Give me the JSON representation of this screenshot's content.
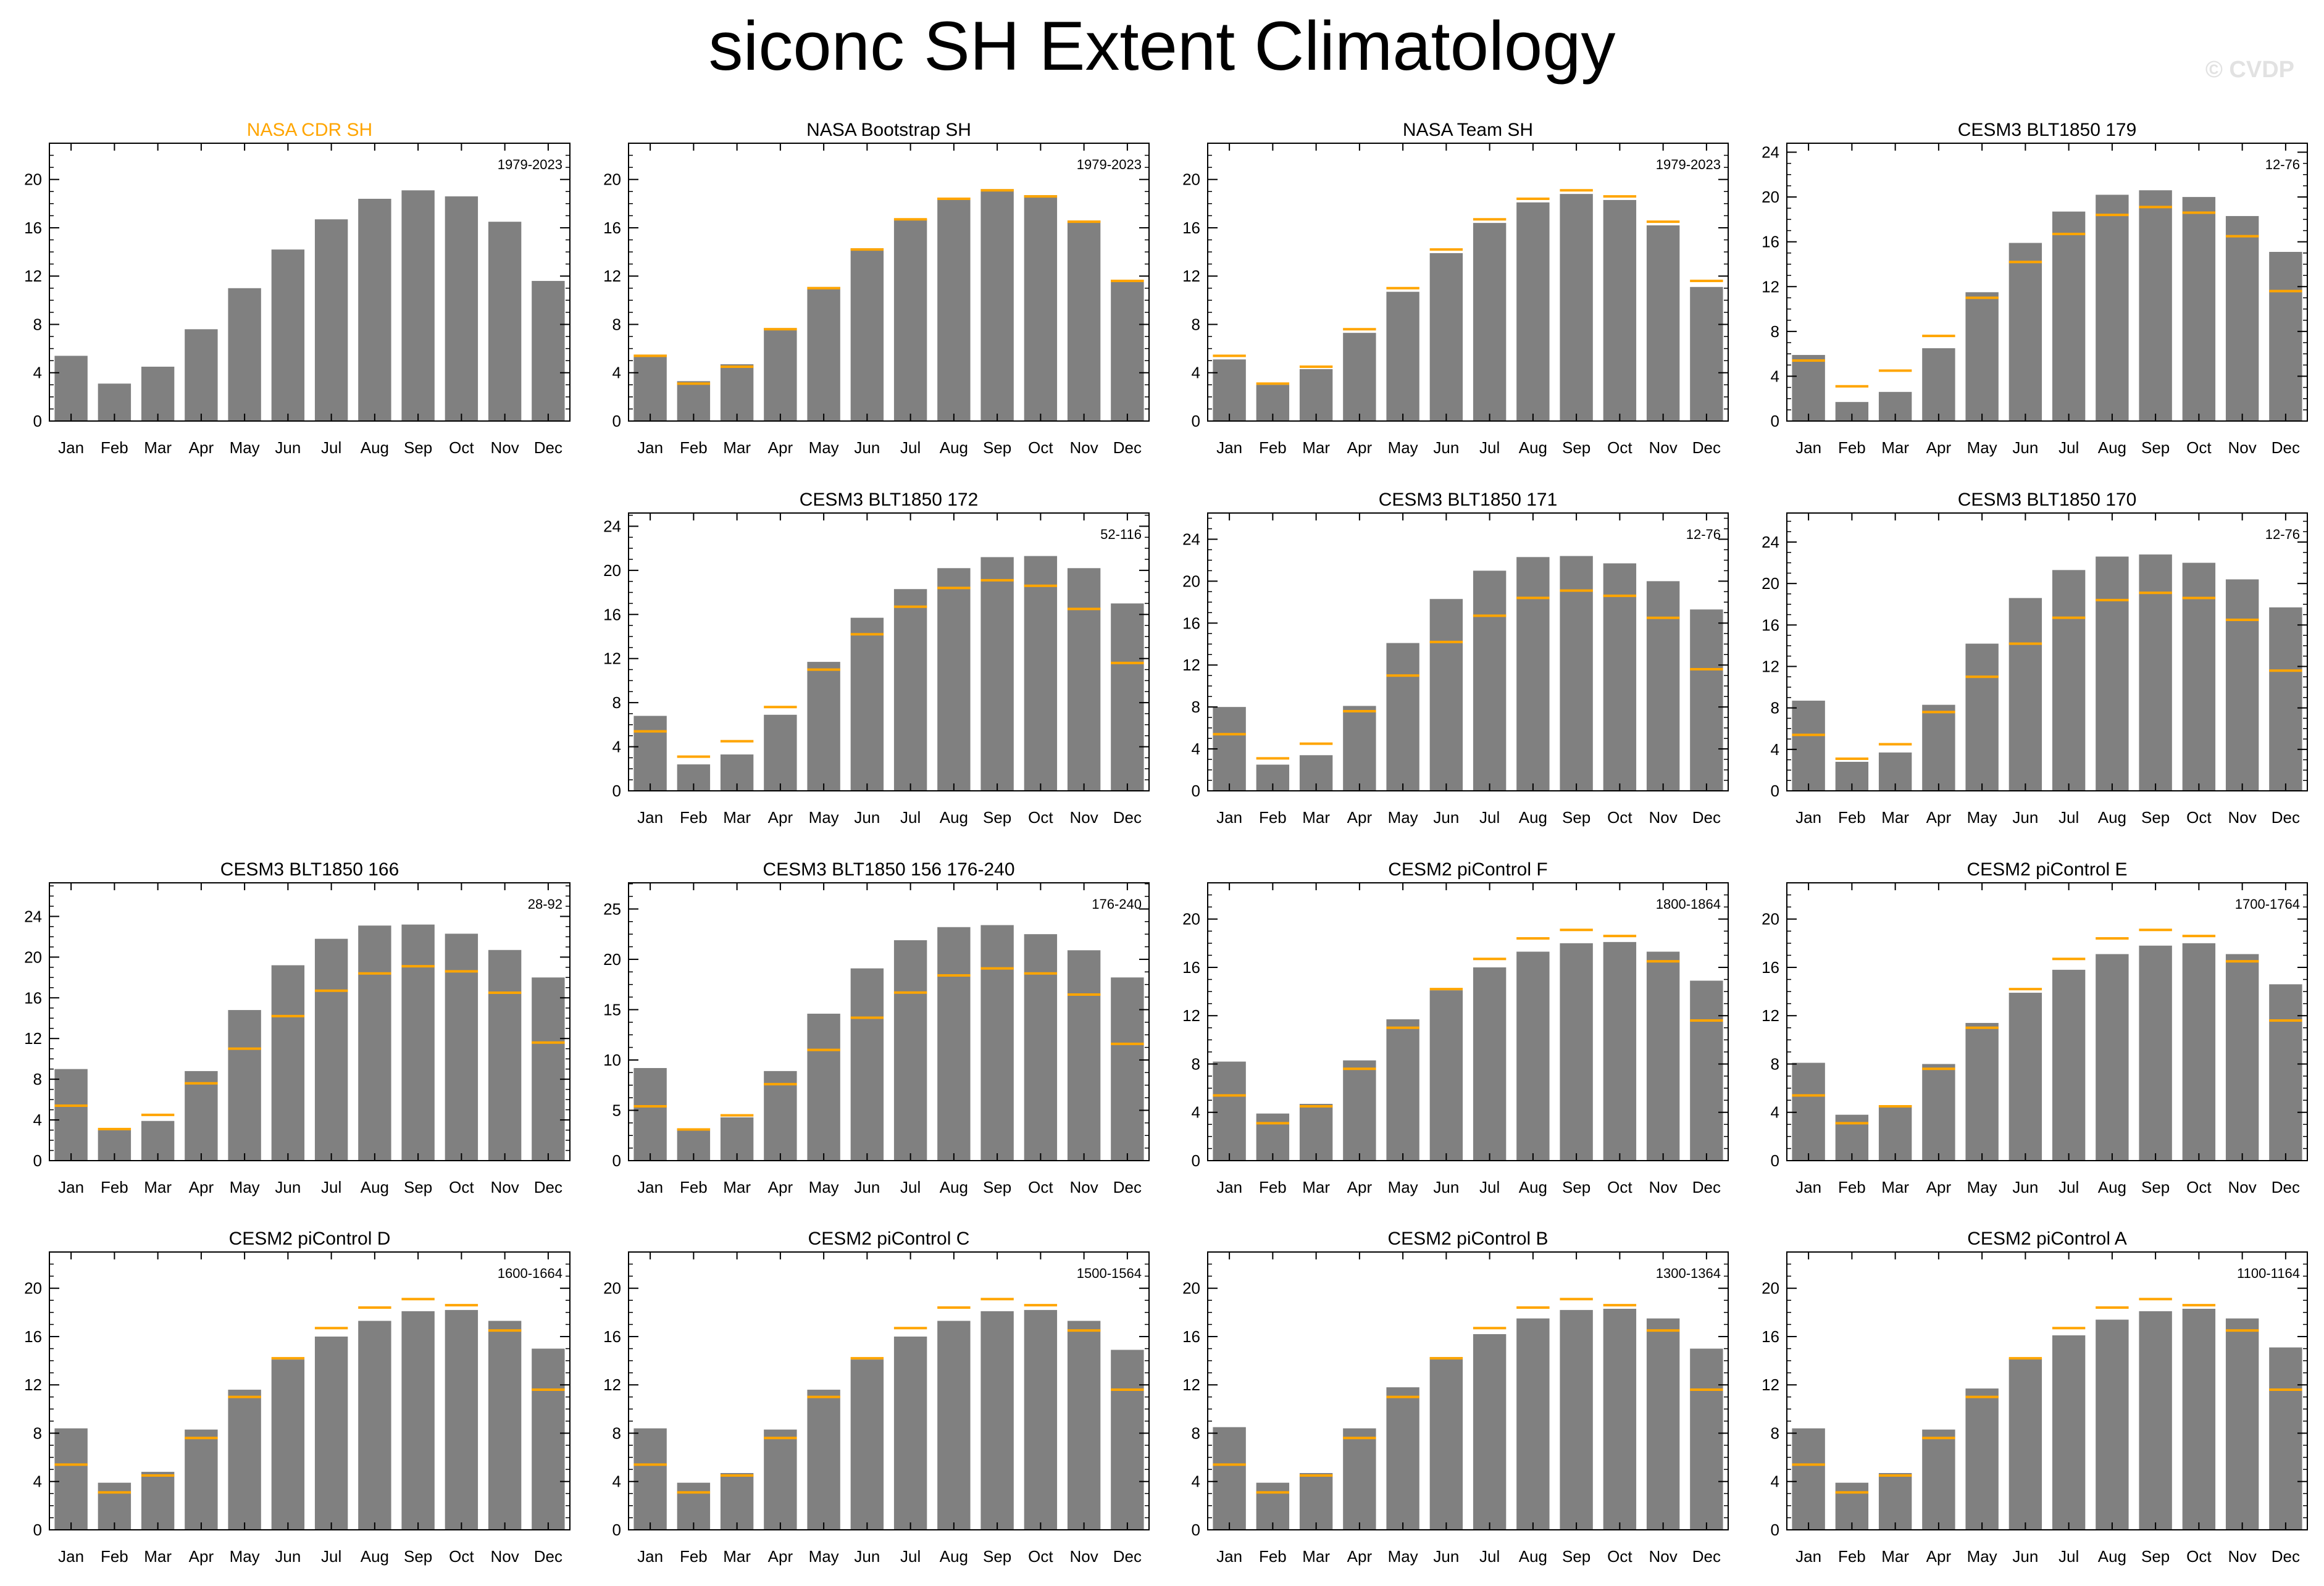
{
  "title": "siconc SH Extent Climatology",
  "watermark": "© CVDP",
  "colors": {
    "bar": "#808080",
    "ref_line": "#ffa500",
    "highlight_title": "#ffa500"
  },
  "chart_data": [
    {
      "type": "bar",
      "title": "NASA CDR SH",
      "title_color": "#ffa500",
      "period": "1979-2023",
      "categories": [
        "Jan",
        "Feb",
        "Mar",
        "Apr",
        "May",
        "Jun",
        "Jul",
        "Aug",
        "Sep",
        "Oct",
        "Nov",
        "Dec"
      ],
      "values": [
        5.4,
        3.1,
        4.5,
        7.6,
        11.0,
        14.2,
        16.7,
        18.4,
        19.1,
        18.6,
        16.5,
        11.6
      ],
      "ylim": [
        0,
        23
      ],
      "yticks": [
        0,
        4,
        8,
        12,
        16,
        20
      ],
      "reference": null
    },
    {
      "type": "bar",
      "title": "NASA Bootstrap SH",
      "period": "1979-2023",
      "categories": [
        "Jan",
        "Feb",
        "Mar",
        "Apr",
        "May",
        "Jun",
        "Jul",
        "Aug",
        "Sep",
        "Oct",
        "Nov",
        "Dec"
      ],
      "values": [
        5.5,
        3.3,
        4.7,
        7.7,
        11.1,
        14.3,
        16.7,
        18.5,
        19.2,
        18.7,
        16.6,
        11.7
      ],
      "ylim": [
        0,
        23
      ],
      "yticks": [
        0,
        4,
        8,
        12,
        16,
        20
      ],
      "reference": [
        5.4,
        3.1,
        4.5,
        7.6,
        11.0,
        14.2,
        16.7,
        18.4,
        19.1,
        18.6,
        16.5,
        11.6
      ]
    },
    {
      "type": "bar",
      "title": "NASA Team SH",
      "period": "1979-2023",
      "categories": [
        "Jan",
        "Feb",
        "Mar",
        "Apr",
        "May",
        "Jun",
        "Jul",
        "Aug",
        "Sep",
        "Oct",
        "Nov",
        "Dec"
      ],
      "values": [
        5.1,
        3.0,
        4.3,
        7.3,
        10.7,
        13.9,
        16.4,
        18.1,
        18.8,
        18.3,
        16.2,
        11.1
      ],
      "ylim": [
        0,
        23
      ],
      "yticks": [
        0,
        4,
        8,
        12,
        16,
        20
      ],
      "reference": [
        5.4,
        3.1,
        4.5,
        7.6,
        11.0,
        14.2,
        16.7,
        18.4,
        19.1,
        18.6,
        16.5,
        11.6
      ]
    },
    {
      "type": "bar",
      "title": "CESM3 BLT1850 179",
      "period": "12-76",
      "categories": [
        "Jan",
        "Feb",
        "Mar",
        "Apr",
        "May",
        "Jun",
        "Jul",
        "Aug",
        "Sep",
        "Oct",
        "Nov",
        "Dec"
      ],
      "values": [
        5.9,
        1.7,
        2.6,
        6.5,
        11.5,
        15.9,
        18.7,
        20.2,
        20.6,
        20.0,
        18.3,
        15.1
      ],
      "ylim": [
        0,
        24.8
      ],
      "yticks": [
        0,
        4,
        8,
        12,
        16,
        20,
        24
      ],
      "reference": [
        5.4,
        3.1,
        4.5,
        7.6,
        11.0,
        14.2,
        16.7,
        18.4,
        19.1,
        18.6,
        16.5,
        11.6
      ]
    },
    null,
    {
      "type": "bar",
      "title": "CESM3 BLT1850 172",
      "period": "52-116",
      "categories": [
        "Jan",
        "Feb",
        "Mar",
        "Apr",
        "May",
        "Jun",
        "Jul",
        "Aug",
        "Sep",
        "Oct",
        "Nov",
        "Dec"
      ],
      "values": [
        6.8,
        2.4,
        3.3,
        6.9,
        11.7,
        15.7,
        18.3,
        20.2,
        21.2,
        21.3,
        20.2,
        17.0
      ],
      "ylim": [
        0,
        25.2
      ],
      "yticks": [
        0,
        4,
        8,
        12,
        16,
        20,
        24
      ],
      "reference": [
        5.4,
        3.1,
        4.5,
        7.6,
        11.0,
        14.2,
        16.7,
        18.4,
        19.1,
        18.6,
        16.5,
        11.6
      ]
    },
    {
      "type": "bar",
      "title": "CESM3 BLT1850 171",
      "period": "12-76",
      "categories": [
        "Jan",
        "Feb",
        "Mar",
        "Apr",
        "May",
        "Jun",
        "Jul",
        "Aug",
        "Sep",
        "Oct",
        "Nov",
        "Dec"
      ],
      "values": [
        8.0,
        2.5,
        3.4,
        8.1,
        14.1,
        18.3,
        21.0,
        22.3,
        22.4,
        21.7,
        20.0,
        17.3
      ],
      "ylim": [
        0,
        26.5
      ],
      "yticks": [
        0,
        4,
        8,
        12,
        16,
        20,
        24
      ],
      "reference": [
        5.4,
        3.1,
        4.5,
        7.6,
        11.0,
        14.2,
        16.7,
        18.4,
        19.1,
        18.6,
        16.5,
        11.6
      ]
    },
    {
      "type": "bar",
      "title": "CESM3 BLT1850 170",
      "period": "12-76",
      "categories": [
        "Jan",
        "Feb",
        "Mar",
        "Apr",
        "May",
        "Jun",
        "Jul",
        "Aug",
        "Sep",
        "Oct",
        "Nov",
        "Dec"
      ],
      "values": [
        8.7,
        2.8,
        3.7,
        8.3,
        14.2,
        18.6,
        21.3,
        22.6,
        22.8,
        22.0,
        20.4,
        17.7
      ],
      "ylim": [
        0,
        26.8
      ],
      "yticks": [
        0,
        4,
        8,
        12,
        16,
        20,
        24
      ],
      "reference": [
        5.4,
        3.1,
        4.5,
        7.6,
        11.0,
        14.2,
        16.7,
        18.4,
        19.1,
        18.6,
        16.5,
        11.6
      ]
    },
    {
      "type": "bar",
      "title": "CESM3 BLT1850 166",
      "period": "28-92",
      "categories": [
        "Jan",
        "Feb",
        "Mar",
        "Apr",
        "May",
        "Jun",
        "Jul",
        "Aug",
        "Sep",
        "Oct",
        "Nov",
        "Dec"
      ],
      "values": [
        9.0,
        3.0,
        3.9,
        8.8,
        14.8,
        19.2,
        21.8,
        23.1,
        23.2,
        22.3,
        20.7,
        18.0
      ],
      "ylim": [
        0,
        27.3
      ],
      "yticks": [
        0,
        4,
        8,
        12,
        16,
        20,
        24
      ],
      "reference": [
        5.4,
        3.1,
        4.5,
        7.6,
        11.0,
        14.2,
        16.7,
        18.4,
        19.1,
        18.6,
        16.5,
        11.6
      ]
    },
    {
      "type": "bar",
      "title": "CESM3 BLT1850 156 176-240",
      "period": "176-240",
      "categories": [
        "Jan",
        "Feb",
        "Mar",
        "Apr",
        "May",
        "Jun",
        "Jul",
        "Aug",
        "Sep",
        "Oct",
        "Nov",
        "Dec"
      ],
      "values": [
        9.2,
        3.2,
        4.3,
        8.9,
        14.6,
        19.1,
        21.9,
        23.2,
        23.4,
        22.5,
        20.9,
        18.2
      ],
      "ylim": [
        0,
        27.6
      ],
      "yticks": [
        0,
        5,
        10,
        15,
        20,
        25
      ],
      "reference": [
        5.4,
        3.1,
        4.5,
        7.6,
        11.0,
        14.2,
        16.7,
        18.4,
        19.1,
        18.6,
        16.5,
        11.6
      ]
    },
    {
      "type": "bar",
      "title": "CESM2 piControl F",
      "period": "1800-1864",
      "categories": [
        "Jan",
        "Feb",
        "Mar",
        "Apr",
        "May",
        "Jun",
        "Jul",
        "Aug",
        "Sep",
        "Oct",
        "Nov",
        "Dec"
      ],
      "values": [
        8.2,
        3.9,
        4.7,
        8.3,
        11.7,
        14.1,
        16.0,
        17.3,
        18.0,
        18.1,
        17.3,
        14.9
      ],
      "ylim": [
        0,
        23
      ],
      "yticks": [
        0,
        4,
        8,
        12,
        16,
        20
      ],
      "reference": [
        5.4,
        3.1,
        4.5,
        7.6,
        11.0,
        14.2,
        16.7,
        18.4,
        19.1,
        18.6,
        16.5,
        11.6
      ]
    },
    {
      "type": "bar",
      "title": "CESM2 piControl E",
      "period": "1700-1764",
      "categories": [
        "Jan",
        "Feb",
        "Mar",
        "Apr",
        "May",
        "Jun",
        "Jul",
        "Aug",
        "Sep",
        "Oct",
        "Nov",
        "Dec"
      ],
      "values": [
        8.1,
        3.8,
        4.6,
        8.0,
        11.4,
        13.9,
        15.8,
        17.1,
        17.8,
        18.0,
        17.1,
        14.6
      ],
      "ylim": [
        0,
        23
      ],
      "yticks": [
        0,
        4,
        8,
        12,
        16,
        20
      ],
      "reference": [
        5.4,
        3.1,
        4.5,
        7.6,
        11.0,
        14.2,
        16.7,
        18.4,
        19.1,
        18.6,
        16.5,
        11.6
      ]
    },
    {
      "type": "bar",
      "title": "CESM2 piControl D",
      "period": "1600-1664",
      "categories": [
        "Jan",
        "Feb",
        "Mar",
        "Apr",
        "May",
        "Jun",
        "Jul",
        "Aug",
        "Sep",
        "Oct",
        "Nov",
        "Dec"
      ],
      "values": [
        8.4,
        3.9,
        4.8,
        8.3,
        11.6,
        14.1,
        16.0,
        17.3,
        18.1,
        18.2,
        17.3,
        15.0
      ],
      "ylim": [
        0,
        23
      ],
      "yticks": [
        0,
        4,
        8,
        12,
        16,
        20
      ],
      "reference": [
        5.4,
        3.1,
        4.5,
        7.6,
        11.0,
        14.2,
        16.7,
        18.4,
        19.1,
        18.6,
        16.5,
        11.6
      ]
    },
    {
      "type": "bar",
      "title": "CESM2 piControl C",
      "period": "1500-1564",
      "categories": [
        "Jan",
        "Feb",
        "Mar",
        "Apr",
        "May",
        "Jun",
        "Jul",
        "Aug",
        "Sep",
        "Oct",
        "Nov",
        "Dec"
      ],
      "values": [
        8.4,
        3.9,
        4.7,
        8.3,
        11.6,
        14.1,
        16.0,
        17.3,
        18.1,
        18.2,
        17.3,
        14.9
      ],
      "ylim": [
        0,
        23
      ],
      "yticks": [
        0,
        4,
        8,
        12,
        16,
        20
      ],
      "reference": [
        5.4,
        3.1,
        4.5,
        7.6,
        11.0,
        14.2,
        16.7,
        18.4,
        19.1,
        18.6,
        16.5,
        11.6
      ]
    },
    {
      "type": "bar",
      "title": "CESM2 piControl B",
      "period": "1300-1364",
      "categories": [
        "Jan",
        "Feb",
        "Mar",
        "Apr",
        "May",
        "Jun",
        "Jul",
        "Aug",
        "Sep",
        "Oct",
        "Nov",
        "Dec"
      ],
      "values": [
        8.5,
        3.9,
        4.7,
        8.4,
        11.8,
        14.3,
        16.2,
        17.5,
        18.2,
        18.3,
        17.5,
        15.0
      ],
      "ylim": [
        0,
        23
      ],
      "yticks": [
        0,
        4,
        8,
        12,
        16,
        20
      ],
      "reference": [
        5.4,
        3.1,
        4.5,
        7.6,
        11.0,
        14.2,
        16.7,
        18.4,
        19.1,
        18.6,
        16.5,
        11.6
      ]
    },
    {
      "type": "bar",
      "title": "CESM2 piControl A",
      "period": "1100-1164",
      "categories": [
        "Jan",
        "Feb",
        "Mar",
        "Apr",
        "May",
        "Jun",
        "Jul",
        "Aug",
        "Sep",
        "Oct",
        "Nov",
        "Dec"
      ],
      "values": [
        8.4,
        3.9,
        4.7,
        8.3,
        11.7,
        14.2,
        16.1,
        17.4,
        18.1,
        18.3,
        17.5,
        15.1
      ],
      "ylim": [
        0,
        23
      ],
      "yticks": [
        0,
        4,
        8,
        12,
        16,
        20
      ],
      "reference": [
        5.4,
        3.1,
        4.5,
        7.6,
        11.0,
        14.2,
        16.7,
        18.4,
        19.1,
        18.6,
        16.5,
        11.6
      ]
    }
  ]
}
